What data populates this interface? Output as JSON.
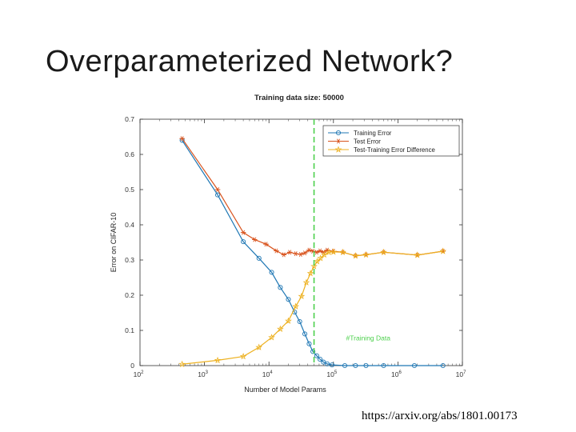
{
  "slide": {
    "title": "Overparameterized Network?",
    "citation": "https://arxiv.org/abs/1801.00173"
  },
  "chart_data": {
    "type": "line",
    "title": "Training data size: 50000",
    "xlabel": "Number of Model Params",
    "ylabel": "Error on CIFAR-10",
    "x_scale": "log",
    "xlim": [
      100,
      10000000
    ],
    "ylim": [
      0,
      0.7
    ],
    "x_ticks": [
      {
        "value": 100,
        "base": "10",
        "exp": "2"
      },
      {
        "value": 1000,
        "base": "10",
        "exp": "3"
      },
      {
        "value": 10000,
        "base": "10",
        "exp": "4"
      },
      {
        "value": 100000,
        "base": "10",
        "exp": "5"
      },
      {
        "value": 1000000,
        "base": "10",
        "exp": "6"
      },
      {
        "value": 10000000,
        "base": "10",
        "exp": "7"
      }
    ],
    "y_ticks": [
      "0",
      "0.1",
      "0.2",
      "0.3",
      "0.4",
      "0.5",
      "0.6",
      "0.7"
    ],
    "grid": false,
    "legend_position": "top-right",
    "vline": {
      "x": 50000,
      "label": "#Training Data",
      "color": "#4cd04c"
    },
    "series": [
      {
        "name": "Training Error",
        "color": "#1f77b4",
        "marker": "circle",
        "x": [
          450,
          1600,
          4000,
          7000,
          11000,
          15000,
          20000,
          25000,
          30000,
          36000,
          42000,
          48000,
          55000,
          62000,
          70000,
          80000,
          95000,
          150000,
          220000,
          320000,
          600000,
          1800000,
          5000000
        ],
        "y": [
          0.64,
          0.485,
          0.352,
          0.305,
          0.265,
          0.222,
          0.188,
          0.152,
          0.125,
          0.09,
          0.062,
          0.04,
          0.028,
          0.018,
          0.01,
          0.005,
          0.002,
          0.0,
          0.0,
          0.0,
          0.0,
          0.0,
          0.0
        ]
      },
      {
        "name": "Test Error",
        "color": "#d9541e",
        "marker": "asterisk",
        "x": [
          450,
          1600,
          4000,
          6000,
          9000,
          13000,
          17000,
          21000,
          26000,
          31000,
          36000,
          42000,
          48000,
          55000,
          62000,
          70000,
          80000,
          100000,
          140000,
          220000,
          320000,
          600000,
          2000000,
          5000000
        ],
        "y": [
          0.645,
          0.5,
          0.378,
          0.358,
          0.345,
          0.326,
          0.315,
          0.322,
          0.318,
          0.316,
          0.32,
          0.328,
          0.325,
          0.322,
          0.326,
          0.322,
          0.328,
          0.325,
          0.322,
          0.312,
          0.315,
          0.322,
          0.314,
          0.325
        ]
      },
      {
        "name": "Test-Training Error Difference",
        "color": "#edb120",
        "marker": "star",
        "x": [
          450,
          1600,
          4000,
          7000,
          11000,
          15000,
          20000,
          26000,
          32000,
          38000,
          44000,
          50000,
          56000,
          63000,
          72000,
          85000,
          100000,
          140000,
          220000,
          320000,
          600000,
          2000000,
          5000000
        ],
        "y": [
          0.004,
          0.015,
          0.026,
          0.052,
          0.08,
          0.104,
          0.127,
          0.168,
          0.197,
          0.236,
          0.262,
          0.282,
          0.296,
          0.305,
          0.315,
          0.322,
          0.323,
          0.322,
          0.312,
          0.315,
          0.322,
          0.314,
          0.325
        ]
      }
    ]
  }
}
